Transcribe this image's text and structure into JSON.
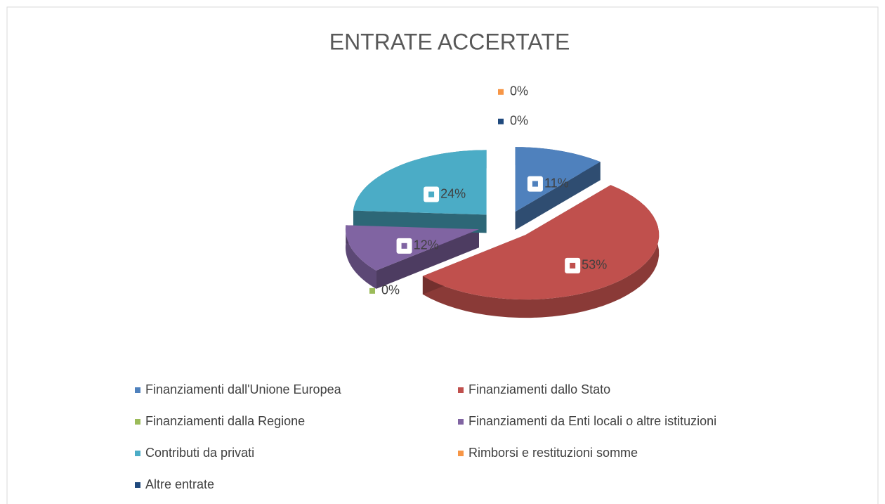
{
  "chart_data": {
    "type": "pie",
    "title": "ENTRATE ACCERTATE",
    "categories": [
      "Finanziamenti dall'Unione Europea",
      "Finanziamenti dallo Stato",
      "Finanziamenti dalla Regione",
      "Finanziamenti da Enti locali o altre istituzioni",
      "Contributi da privati",
      "Rimborsi e restituzioni somme",
      "Altre entrate"
    ],
    "values": [
      11,
      53,
      0,
      12,
      24,
      0,
      0
    ],
    "value_labels": [
      "11%",
      "53%",
      "0%",
      "12%",
      "24%",
      "0%",
      "0%"
    ],
    "colors": [
      "#4f81bd",
      "#c0504d",
      "#9bbb59",
      "#8064a2",
      "#4bacc6",
      "#f79646",
      "#1f497d"
    ],
    "legend": "bottom"
  }
}
